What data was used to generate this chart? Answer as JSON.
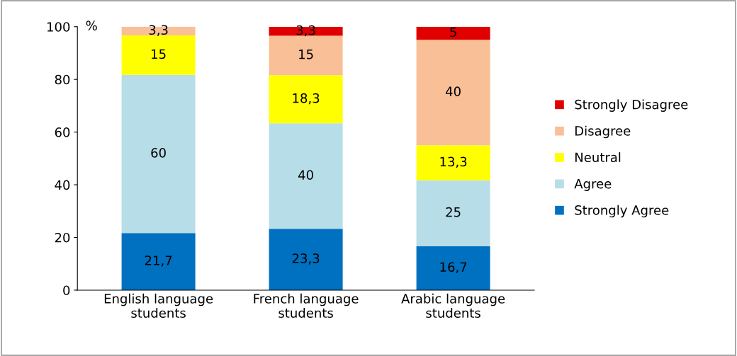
{
  "chart_data": {
    "type": "bar",
    "stacked": true,
    "ylabel": "%",
    "categories": [
      "English language\nstudents",
      "French language\nstudents",
      "Arabic language\nstudents"
    ],
    "series": [
      {
        "name": "Strongly Agree",
        "color": "#0070c0",
        "values": [
          21.7,
          23.3,
          16.7
        ],
        "value_labels": [
          "21,7",
          "23,3",
          "16,7"
        ]
      },
      {
        "name": "Agree",
        "color": "#b7dde8",
        "values": [
          60,
          40,
          25
        ],
        "value_labels": [
          "60",
          "40",
          "25"
        ]
      },
      {
        "name": "Neutral",
        "color": "#ffff00",
        "values": [
          15,
          18.3,
          13.3
        ],
        "value_labels": [
          "15",
          "18,3",
          "13,3"
        ]
      },
      {
        "name": "Disagree",
        "color": "#f9bf96",
        "values": [
          3.3,
          15,
          40
        ],
        "value_labels": [
          "3,3",
          "15",
          "40"
        ]
      },
      {
        "name": "Strongly Disagree",
        "color": "#e00000",
        "values": [
          null,
          3.3,
          5
        ],
        "value_labels": [
          null,
          "3,3",
          "5"
        ]
      }
    ],
    "ylim": [
      0,
      100
    ],
    "yticks": [
      0,
      20,
      40,
      60,
      80,
      100
    ],
    "grid": false,
    "legend": "right"
  }
}
